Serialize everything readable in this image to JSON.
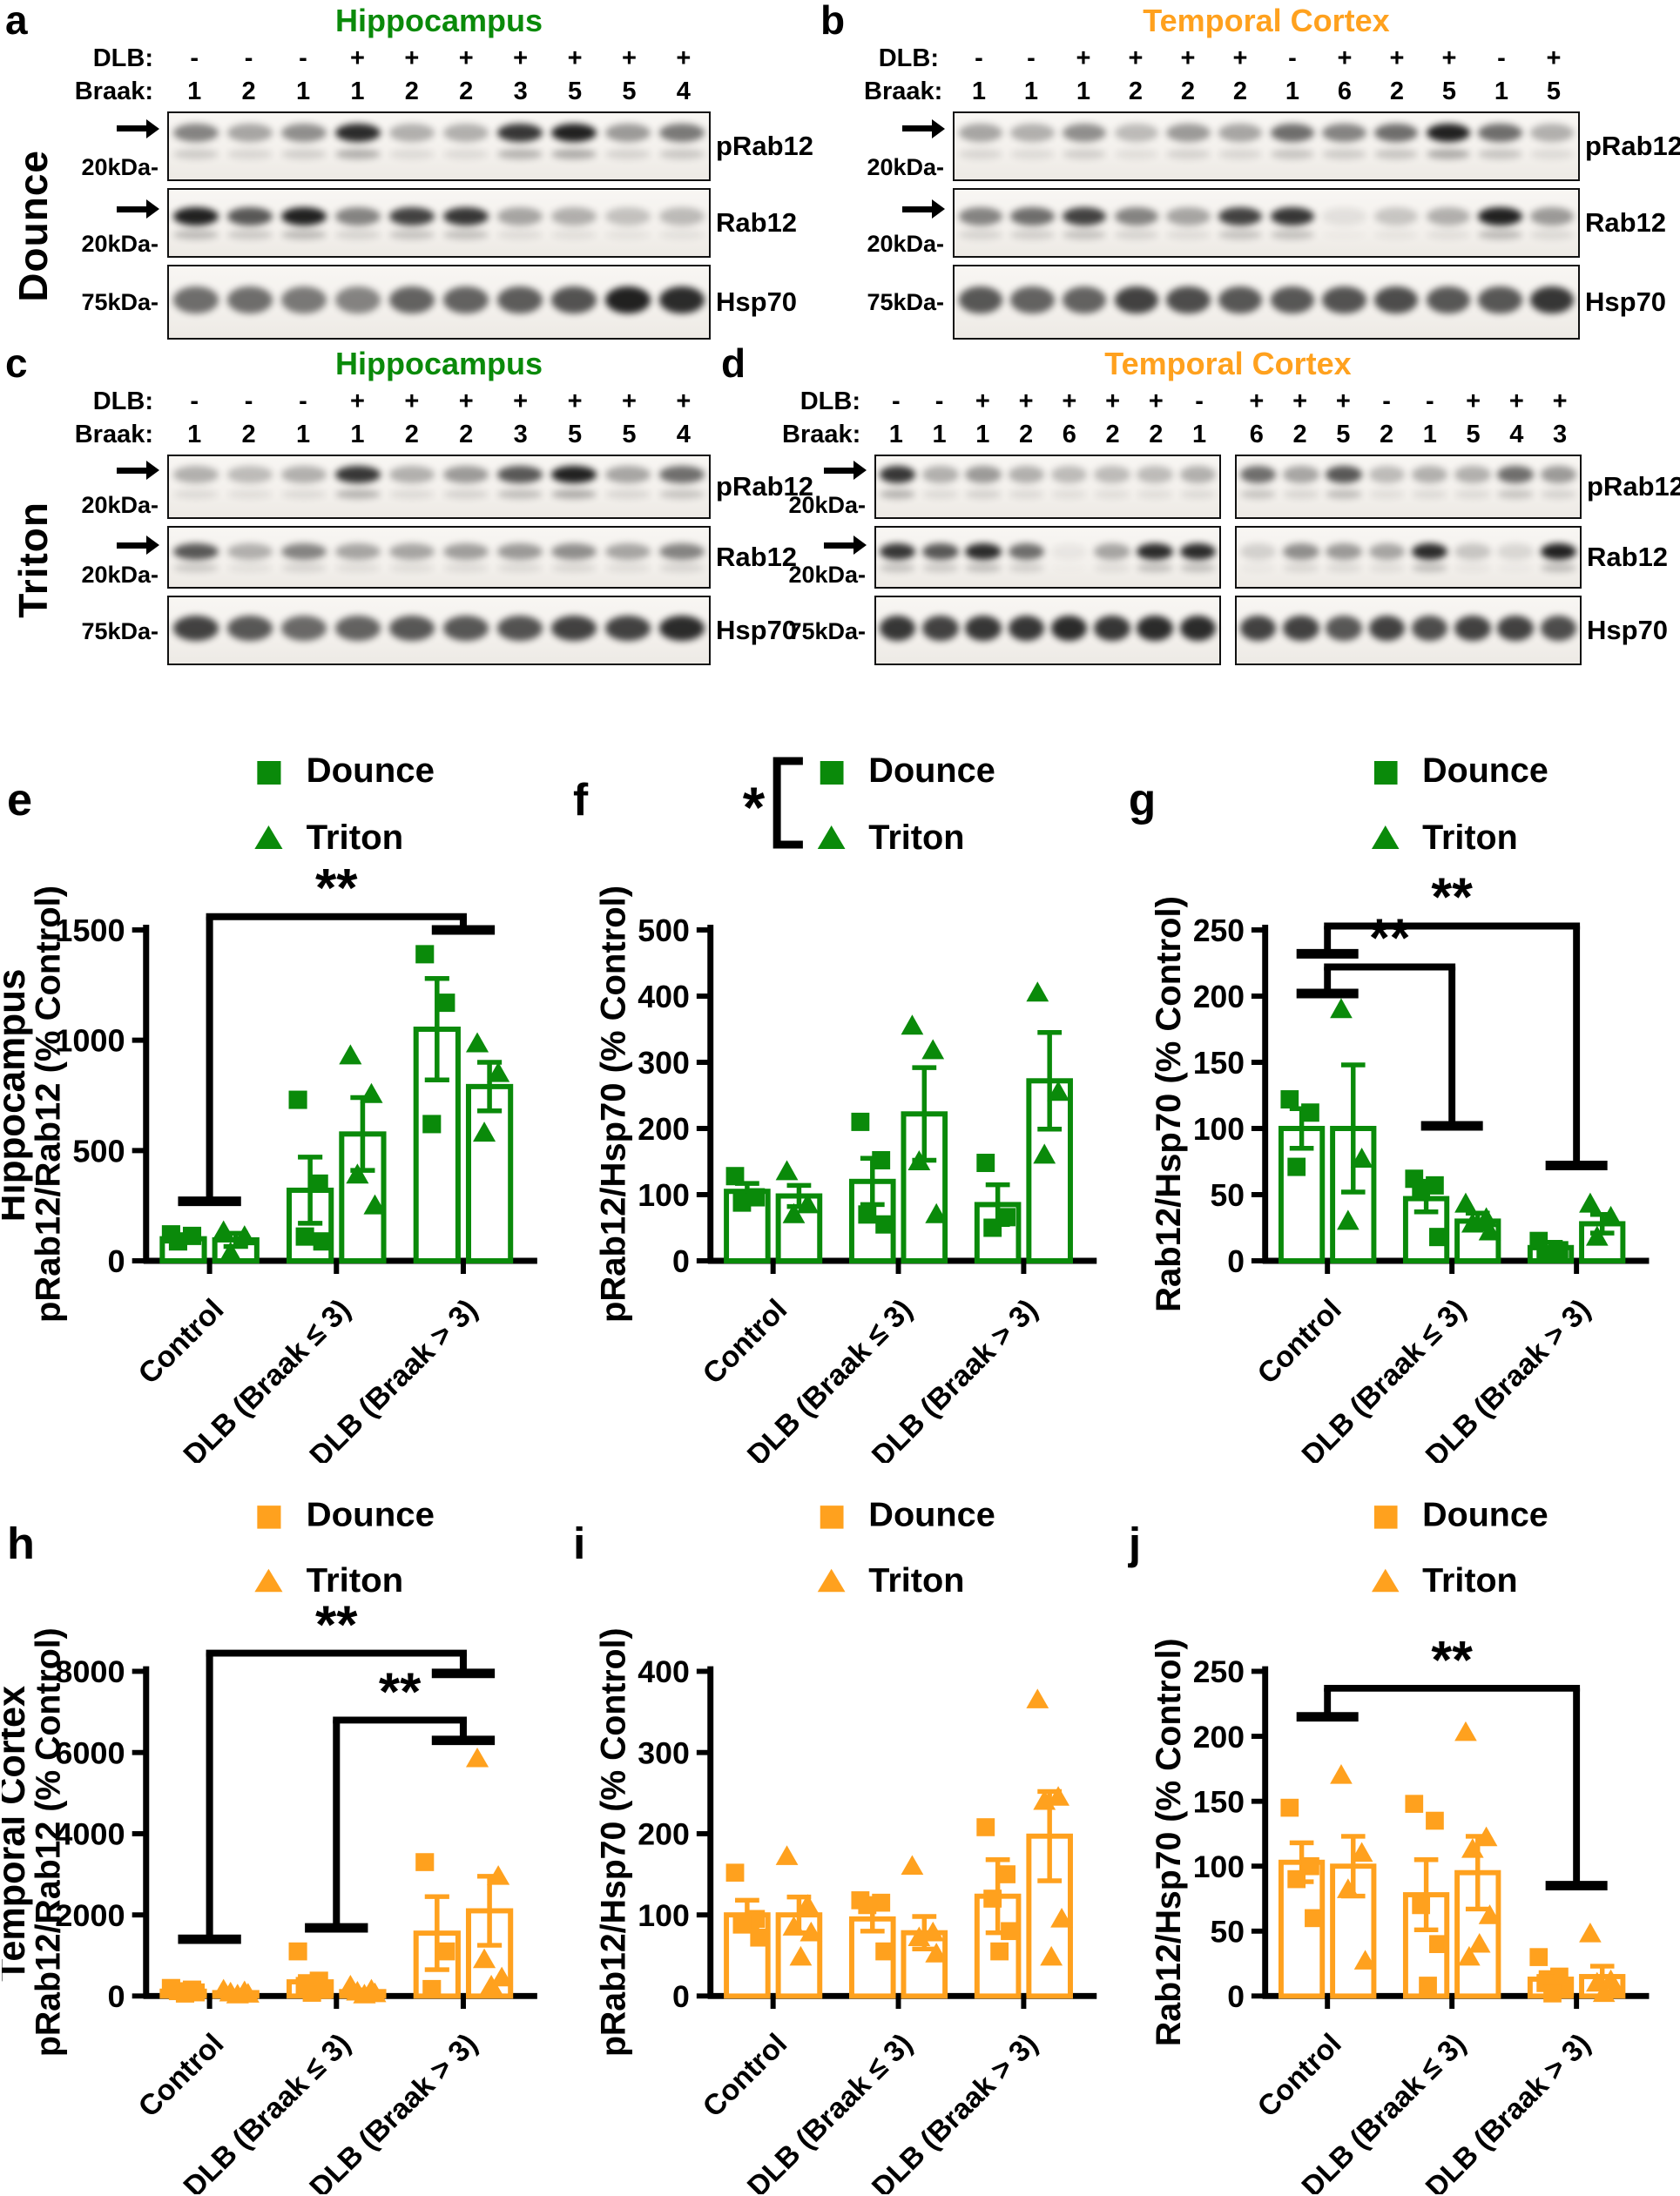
{
  "colors": {
    "green": "#0a8a0a",
    "orange": "#FFA11E",
    "band": "#161616"
  },
  "labels": {
    "dlb": "DLB:",
    "braak": "Braak:"
  },
  "blots": [
    {
      "letter": "a",
      "title": "Hippocampus",
      "title_color": "green",
      "method": "Dounce",
      "dlb": [
        "-",
        "-",
        "-",
        "+",
        "+",
        "+",
        "+",
        "+",
        "+",
        "+"
      ],
      "braak": [
        "1",
        "2",
        "1",
        "1",
        "2",
        "2",
        "3",
        "5",
        "5",
        "4"
      ],
      "rows": [
        {
          "label": "pRab12",
          "marker": "20kDa-",
          "bands": [
            [
              0.5,
              0.35,
              0.45,
              0.9,
              0.3,
              0.3,
              0.85,
              0.95,
              0.4,
              0.55
            ]
          ]
        },
        {
          "label": "Rab12",
          "marker": "20kDa-",
          "bands": [
            [
              0.95,
              0.7,
              0.95,
              0.5,
              0.8,
              0.85,
              0.35,
              0.3,
              0.22,
              0.25
            ]
          ]
        },
        {
          "label": "Hsp70",
          "marker": "75kDa-",
          "bands": [
            [
              0.6,
              0.6,
              0.55,
              0.5,
              0.65,
              0.65,
              0.68,
              0.72,
              0.95,
              0.9
            ]
          ]
        }
      ]
    },
    {
      "letter": "b",
      "title": "Temporal Cortex",
      "title_color": "orange",
      "method": "",
      "dlb": [
        "-",
        "-",
        "+",
        "+",
        "+",
        "+",
        "-",
        "+",
        "+",
        "+",
        "-",
        "+"
      ],
      "braak": [
        "1",
        "1",
        "1",
        "2",
        "2",
        "2",
        "1",
        "6",
        "2",
        "5",
        "1",
        "5"
      ],
      "rows": [
        {
          "label": "pRab12",
          "marker": "20kDa-",
          "bands": [
            [
              0.35,
              0.3,
              0.45,
              0.25,
              0.4,
              0.35,
              0.6,
              0.5,
              0.6,
              0.95,
              0.6,
              0.3
            ]
          ]
        },
        {
          "label": "Rab12",
          "marker": "20kDa-",
          "bands": [
            [
              0.5,
              0.6,
              0.8,
              0.5,
              0.35,
              0.8,
              0.85,
              0.08,
              0.2,
              0.3,
              0.95,
              0.4
            ]
          ]
        },
        {
          "label": "Hsp70",
          "marker": "75kDa-",
          "bands": [
            [
              0.7,
              0.65,
              0.65,
              0.8,
              0.75,
              0.7,
              0.7,
              0.72,
              0.75,
              0.7,
              0.7,
              0.85
            ]
          ]
        }
      ]
    },
    {
      "letter": "c",
      "title": "Hippocampus",
      "title_color": "green",
      "method": "Triton",
      "dlb": [
        "-",
        "-",
        "-",
        "+",
        "+",
        "+",
        "+",
        "+",
        "+",
        "+"
      ],
      "braak": [
        "1",
        "2",
        "1",
        "1",
        "2",
        "2",
        "3",
        "5",
        "5",
        "4"
      ],
      "rows": [
        {
          "label": "pRab12",
          "marker": "20kDa-",
          "bands": [
            [
              0.3,
              0.25,
              0.3,
              0.85,
              0.3,
              0.4,
              0.7,
              0.95,
              0.35,
              0.6
            ]
          ]
        },
        {
          "label": "Rab12",
          "marker": "20kDa-",
          "bands": [
            [
              0.7,
              0.3,
              0.5,
              0.35,
              0.35,
              0.38,
              0.4,
              0.45,
              0.35,
              0.5
            ]
          ]
        },
        {
          "label": "Hsp70",
          "marker": "75kDa-",
          "bands": [
            [
              0.8,
              0.7,
              0.62,
              0.65,
              0.7,
              0.7,
              0.72,
              0.8,
              0.8,
              0.9
            ]
          ]
        }
      ]
    },
    {
      "letter": "d",
      "title": "Temporal Cortex",
      "title_color": "orange",
      "method": "",
      "dlb": [
        "-",
        "-",
        "+",
        "+",
        "+",
        "+",
        "+",
        "-",
        "+",
        "+",
        "+",
        "-",
        "-",
        "+",
        "+",
        "+"
      ],
      "braak": [
        "1",
        "1",
        "1",
        "2",
        "6",
        "2",
        "2",
        "1",
        "6",
        "2",
        "5",
        "2",
        "1",
        "5",
        "4",
        "3"
      ],
      "rows": [
        {
          "label": "pRab12",
          "marker": "20kDa-",
          "bands": [
            [
              0.85,
              0.3,
              0.4,
              0.3,
              0.25,
              0.25,
              0.25,
              0.3
            ],
            [
              0.6,
              0.35,
              0.7,
              0.25,
              0.3,
              0.3,
              0.6,
              0.4
            ]
          ]
        },
        {
          "label": "Rab12",
          "marker": "20kDa-",
          "bands": [
            [
              0.85,
              0.7,
              0.9,
              0.6,
              0.05,
              0.35,
              0.9,
              0.9
            ],
            [
              0.15,
              0.45,
              0.4,
              0.35,
              0.9,
              0.2,
              0.12,
              0.95
            ]
          ]
        },
        {
          "label": "Hsp70",
          "marker": "75kDa-",
          "bands": [
            [
              0.85,
              0.8,
              0.85,
              0.85,
              0.9,
              0.85,
              0.9,
              0.9
            ],
            [
              0.8,
              0.8,
              0.7,
              0.8,
              0.75,
              0.8,
              0.8,
              0.75
            ]
          ]
        }
      ]
    }
  ],
  "chart_data": [
    {
      "type": "bar",
      "letter": "e",
      "color_key": "green",
      "side_label": "Hippocampus",
      "legend": {
        "items": [
          {
            "marker": "square",
            "label": "Dounce"
          },
          {
            "marker": "triangle",
            "label": "Triton"
          }
        ],
        "bracket_label": null
      },
      "ylabel": "pRab12/Rab12 (% Control)",
      "ymax": 1500,
      "yticks": [
        0,
        500,
        1000,
        1500
      ],
      "categories": [
        "Control",
        "DLB (Braak ≤ 3)",
        "DLB (Braak > 3)"
      ],
      "series": [
        "Dounce",
        "Triton"
      ],
      "bars": [
        [
          {
            "mean": 100,
            "sem": 15,
            "points": [
              120,
              113,
              88
            ]
          },
          {
            "mean": 95,
            "sem": 30,
            "points": [
              132,
              110,
              36
            ]
          }
        ],
        [
          {
            "mean": 320,
            "sem": 150,
            "points": [
              730,
              350,
              110,
              88
            ]
          },
          {
            "mean": 575,
            "sem": 165,
            "points": [
              930,
              755,
              390,
              250
            ]
          }
        ],
        [
          {
            "mean": 1050,
            "sem": 230,
            "points": [
              1390,
              1170,
              620
            ]
          },
          {
            "mean": 790,
            "sem": 110,
            "points": [
              985,
              850,
              580
            ]
          }
        ]
      ],
      "significance": [
        {
          "label": "**",
          "from": 0,
          "to": 2,
          "top": 1560,
          "left_end": 270,
          "right_end": 1500
        }
      ]
    },
    {
      "type": "bar",
      "letter": "f",
      "color_key": "green",
      "side_label": null,
      "legend": {
        "items": [
          {
            "marker": "square",
            "label": "Dounce"
          },
          {
            "marker": "triangle",
            "label": "Triton"
          }
        ],
        "bracket_label": "*"
      },
      "ylabel": "pRab12/Hsp70 (% Control)",
      "ymax": 500,
      "yticks": [
        0,
        100,
        200,
        300,
        400,
        500
      ],
      "categories": [
        "Control",
        "DLB (Braak ≤ 3)",
        "DLB (Braak > 3)"
      ],
      "series": [
        "Dounce",
        "Triton"
      ],
      "bars": [
        [
          {
            "mean": 105,
            "sem": 12,
            "points": [
              128,
              96,
              88
            ]
          },
          {
            "mean": 98,
            "sem": 16,
            "points": [
              135,
              85,
              70
            ]
          }
        ],
        [
          {
            "mean": 120,
            "sem": 35,
            "points": [
              210,
              152,
              70,
              55
            ]
          },
          {
            "mean": 222,
            "sem": 70,
            "points": [
              355,
              318,
              150,
              70
            ]
          }
        ],
        [
          {
            "mean": 85,
            "sem": 30,
            "points": [
              148,
              66,
              50
            ]
          },
          {
            "mean": 272,
            "sem": 73,
            "points": [
              405,
              255,
              160
            ]
          }
        ]
      ],
      "significance": []
    },
    {
      "type": "bar",
      "letter": "g",
      "color_key": "green",
      "side_label": null,
      "legend": {
        "items": [
          {
            "marker": "square",
            "label": "Dounce"
          },
          {
            "marker": "triangle",
            "label": "Triton"
          }
        ],
        "bracket_label": null
      },
      "ylabel": "Rab12/Hsp70 (% Control)",
      "ymax": 250,
      "yticks": [
        0,
        50,
        100,
        150,
        200,
        250
      ],
      "categories": [
        "Control",
        "DLB (Braak ≤ 3)",
        "DLB (Braak > 3)"
      ],
      "series": [
        "Dounce",
        "Triton"
      ],
      "bars": [
        [
          {
            "mean": 100,
            "sem": 15,
            "points": [
              122,
              112,
              71
            ]
          },
          {
            "mean": 100,
            "sem": 48,
            "points": [
              190,
              77,
              30
            ]
          }
        ],
        [
          {
            "mean": 47,
            "sem": 10,
            "points": [
              62,
              57,
              55,
              18
            ]
          },
          {
            "mean": 30,
            "sem": 6,
            "points": [
              43,
              32,
              28,
              22
            ]
          }
        ],
        [
          {
            "mean": 10,
            "sem": 4,
            "points": [
              15,
              8,
              5
            ]
          },
          {
            "mean": 28,
            "sem": 7,
            "points": [
              43,
              33,
              18
            ]
          }
        ]
      ],
      "significance": [
        {
          "label": "**",
          "from": 0,
          "to": 2,
          "top": 253,
          "left_end": 232,
          "right_end": 72
        },
        {
          "label": "**",
          "from": 0,
          "to": 1,
          "top": 222,
          "left_end": 202,
          "right_end": 102
        }
      ]
    },
    {
      "type": "bar",
      "letter": "h",
      "color_key": "orange",
      "side_label": "Temporal Cortex",
      "legend": {
        "items": [
          {
            "marker": "square",
            "label": "Dounce"
          },
          {
            "marker": "triangle",
            "label": "Triton"
          }
        ],
        "bracket_label": null
      },
      "ylabel": "pRab12/Rab12 (% Control)",
      "ymax": 8000,
      "yticks": [
        0,
        2000,
        4000,
        6000,
        8000
      ],
      "categories": [
        "Control",
        "DLB (Braak ≤ 3)",
        "DLB (Braak > 3)"
      ],
      "series": [
        "Dounce",
        "Triton"
      ],
      "bars": [
        [
          {
            "mean": 120,
            "sem": 30,
            "points": [
              200,
              160,
              120,
              90,
              60
            ]
          },
          {
            "mean": 85,
            "sem": 20,
            "points": [
              150,
              110,
              80,
              50,
              30
            ]
          }
        ],
        [
          {
            "mean": 350,
            "sem": 130,
            "points": [
              1100,
              380,
              250,
              150,
              80
            ]
          },
          {
            "mean": 110,
            "sem": 40,
            "points": [
              250,
              150,
              100,
              60,
              30
            ]
          }
        ],
        [
          {
            "mean": 1550,
            "sem": 900,
            "points": [
              3300,
              1100,
              175
            ]
          },
          {
            "mean": 2100,
            "sem": 850,
            "points": [
              5850,
              2950,
              900,
              450,
              250
            ]
          }
        ]
      ],
      "significance": [
        {
          "label": "**",
          "from": 0,
          "to": 2,
          "top": 8450,
          "left_end": 1400,
          "right_end": 7950
        },
        {
          "label": "**",
          "from": 1,
          "to": 2,
          "top": 6800,
          "left_end": 1680,
          "right_end": 6300
        }
      ]
    },
    {
      "type": "bar",
      "letter": "i",
      "color_key": "orange",
      "side_label": null,
      "legend": {
        "items": [
          {
            "marker": "square",
            "label": "Dounce"
          },
          {
            "marker": "triangle",
            "label": "Triton"
          }
        ],
        "bracket_label": null
      },
      "ylabel": "pRab12/Hsp70 (% Control)",
      "ymax": 400,
      "yticks": [
        0,
        100,
        200,
        300,
        400
      ],
      "categories": [
        "Control",
        "DLB (Braak ≤ 3)",
        "DLB (Braak > 3)"
      ],
      "series": [
        "Dounce",
        "Triton"
      ],
      "bars": [
        [
          {
            "mean": 100,
            "sem": 18,
            "points": [
              152,
              95,
              88,
              72
            ]
          },
          {
            "mean": 100,
            "sem": 22,
            "points": [
              172,
              112,
              85,
              78,
              48
            ]
          }
        ],
        [
          {
            "mean": 95,
            "sem": 15,
            "points": [
              118,
              115,
              112,
              55
            ]
          },
          {
            "mean": 78,
            "sem": 20,
            "points": [
              160,
              78,
              72,
              52
            ]
          }
        ],
        [
          {
            "mean": 123,
            "sem": 45,
            "points": [
              208,
              150,
              120,
              80,
              55
            ]
          },
          {
            "mean": 197,
            "sem": 55,
            "points": [
              365,
              245,
              240,
              95,
              48
            ]
          }
        ]
      ],
      "significance": []
    },
    {
      "type": "bar",
      "letter": "j",
      "color_key": "orange",
      "side_label": null,
      "legend": {
        "items": [
          {
            "marker": "square",
            "label": "Dounce"
          },
          {
            "marker": "triangle",
            "label": "Triton"
          }
        ],
        "bracket_label": null
      },
      "ylabel": "Rab12/Hsp70 (% Control)",
      "ymax": 250,
      "yticks": [
        0,
        50,
        100,
        150,
        200,
        250
      ],
      "categories": [
        "Control",
        "DLB (Braak ≤ 3)",
        "DLB (Braak > 3)"
      ],
      "series": [
        "Dounce",
        "Triton"
      ],
      "bars": [
        [
          {
            "mean": 103,
            "sem": 15,
            "points": [
              145,
              100,
              90,
              60
            ]
          },
          {
            "mean": 100,
            "sem": 23,
            "points": [
              170,
              110,
              82,
              27
            ]
          }
        ],
        [
          {
            "mean": 78,
            "sem": 27,
            "points": [
              148,
              135,
              70,
              40,
              8
            ]
          },
          {
            "mean": 95,
            "sem": 28,
            "points": [
              203,
              122,
              113,
              62,
              40,
              30
            ]
          }
        ],
        [
          {
            "mean": 13,
            "sem": 5,
            "points": [
              30,
              15,
              10,
              5,
              2
            ]
          },
          {
            "mean": 15,
            "sem": 8,
            "points": [
              48,
              12,
              10,
              5,
              2
            ]
          }
        ]
      ],
      "significance": [
        {
          "label": "**",
          "from": 0,
          "to": 2,
          "top": 237,
          "left_end": 215,
          "right_end": 85
        }
      ]
    }
  ]
}
